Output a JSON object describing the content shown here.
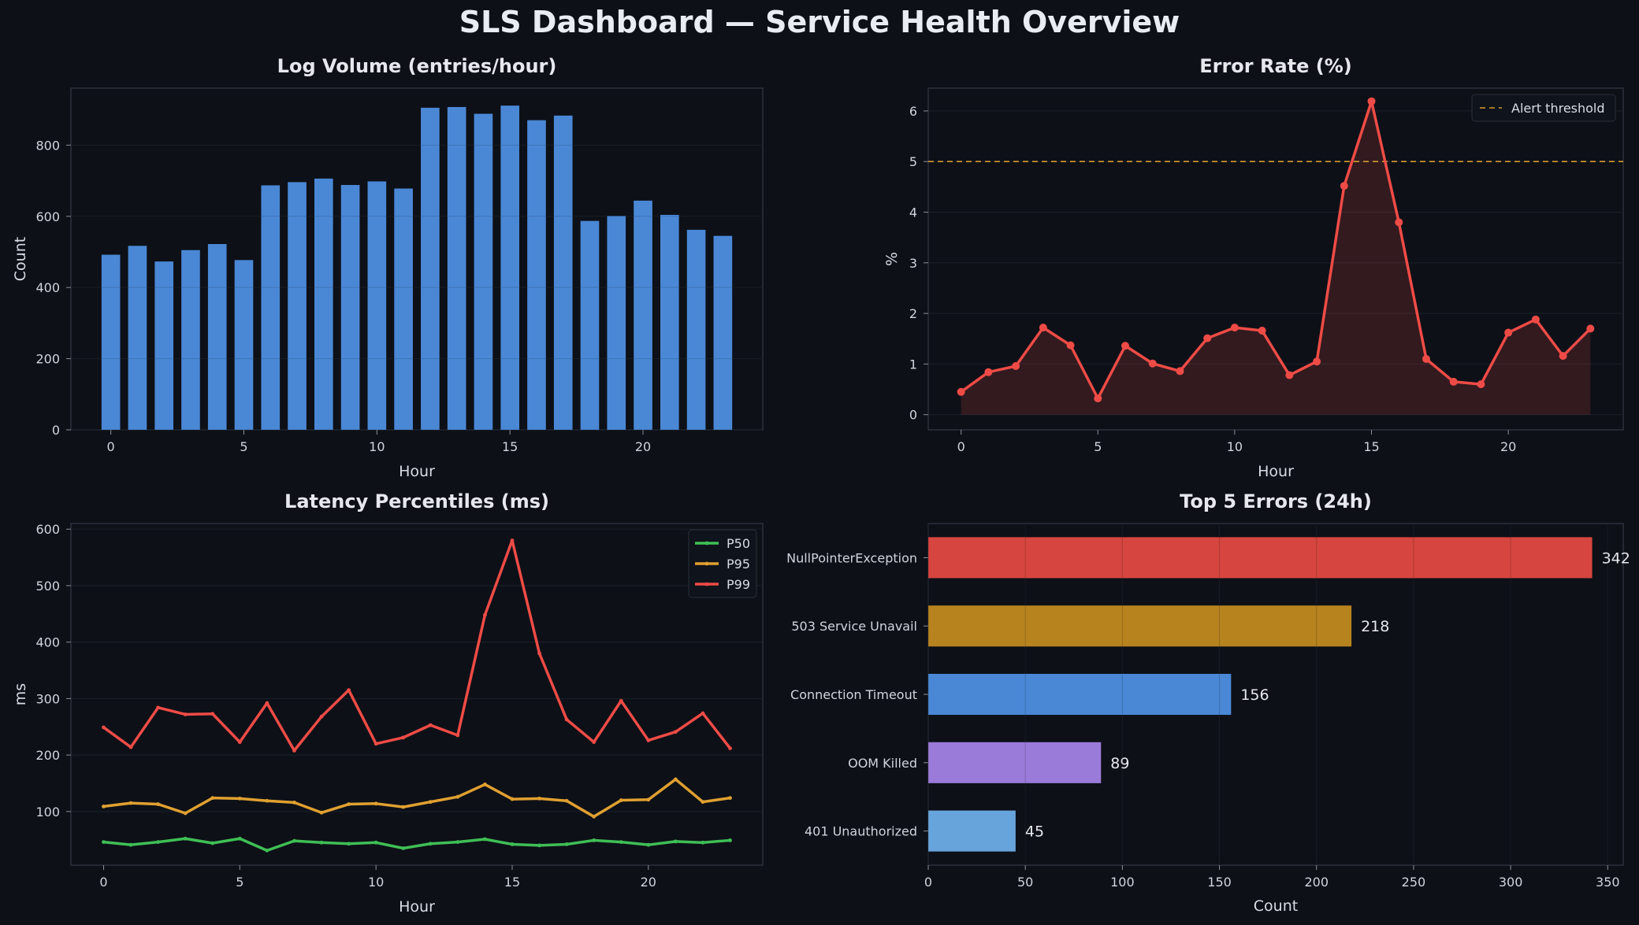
{
  "title": "SLS Dashboard — Service Health Overview",
  "colors": {
    "background": "#0d1017",
    "axis": "#2c313c",
    "grid": "#1c212b",
    "bar_blue": "#4a88d6",
    "error_red": "#ef4b46",
    "threshold": "#d69a2d",
    "p50": "#3fbf55",
    "p95": "#e0a030",
    "p99": "#ef4b46"
  },
  "chart_data": [
    {
      "id": "log-volume",
      "type": "bar",
      "title": "Log Volume (entries/hour)",
      "xlabel": "Hour",
      "ylabel": "Count",
      "x": [
        0,
        1,
        2,
        3,
        4,
        5,
        6,
        7,
        8,
        9,
        10,
        11,
        12,
        13,
        14,
        15,
        16,
        17,
        18,
        19,
        20,
        21,
        22,
        23
      ],
      "values": [
        492,
        517,
        473,
        505,
        522,
        477,
        687,
        696,
        706,
        688,
        698,
        678,
        905,
        907,
        888,
        911,
        870,
        883,
        587,
        601,
        644,
        604,
        562,
        545
      ],
      "xlim": [
        -1.5,
        24.5
      ],
      "ylim": [
        0,
        960
      ],
      "xticks": [
        0,
        5,
        10,
        15,
        20
      ],
      "yticks": [
        0,
        200,
        400,
        600,
        800
      ],
      "grid": true
    },
    {
      "id": "error-rate",
      "type": "area",
      "title": "Error Rate (%)",
      "xlabel": "Hour",
      "ylabel": "%",
      "x": [
        0,
        1,
        2,
        3,
        4,
        5,
        6,
        7,
        8,
        9,
        10,
        11,
        12,
        13,
        14,
        15,
        16,
        17,
        18,
        19,
        20,
        21,
        22,
        23
      ],
      "values": [
        0.45,
        0.84,
        0.96,
        1.72,
        1.37,
        0.32,
        1.36,
        1.01,
        0.86,
        1.51,
        1.72,
        1.66,
        0.78,
        1.05,
        4.52,
        6.19,
        3.8,
        1.1,
        0.65,
        0.6,
        1.62,
        1.88,
        1.16,
        1.7
      ],
      "threshold": {
        "value": 5,
        "label": "Alert threshold"
      },
      "legend": "top-right",
      "xlim": [
        -1.2,
        24.2
      ],
      "ylim": [
        -0.3,
        6.45
      ],
      "xticks": [
        0,
        5,
        10,
        15,
        20
      ],
      "yticks": [
        0,
        1,
        2,
        3,
        4,
        5,
        6
      ],
      "grid": true
    },
    {
      "id": "latency",
      "type": "line",
      "title": "Latency Percentiles (ms)",
      "xlabel": "Hour",
      "ylabel": "ms",
      "x": [
        0,
        1,
        2,
        3,
        4,
        5,
        6,
        7,
        8,
        9,
        10,
        11,
        12,
        13,
        14,
        15,
        16,
        17,
        18,
        19,
        20,
        21,
        22,
        23
      ],
      "series": [
        {
          "name": "P50",
          "values": [
            46,
            41,
            46,
            52,
            44,
            52,
            31,
            48,
            45,
            43,
            45,
            35,
            43,
            46,
            51,
            42,
            40,
            42,
            49,
            46,
            41,
            47,
            45,
            49
          ]
        },
        {
          "name": "P95",
          "values": [
            109,
            115,
            113,
            97,
            124,
            123,
            119,
            116,
            98,
            113,
            114,
            108,
            117,
            126,
            148,
            122,
            123,
            119,
            91,
            120,
            121,
            157,
            117,
            124
          ]
        },
        {
          "name": "P99",
          "values": [
            249,
            214,
            284,
            272,
            273,
            223,
            292,
            208,
            268,
            315,
            220,
            231,
            253,
            235,
            448,
            580,
            380,
            263,
            223,
            296,
            226,
            241,
            274,
            212
          ]
        }
      ],
      "legend": "top-right",
      "xlim": [
        -1.2,
        24.2
      ],
      "ylim": [
        5,
        610
      ],
      "xticks": [
        0,
        5,
        10,
        15,
        20
      ],
      "yticks": [
        100,
        200,
        300,
        400,
        500,
        600
      ],
      "grid": true
    },
    {
      "id": "top-errors",
      "type": "bar",
      "orientation": "horizontal",
      "title": "Top 5 Errors (24h)",
      "xlabel": "Count",
      "categories": [
        "NullPointerException",
        "503 Service Unavail",
        "Connection Timeout",
        "OOM Killed",
        "401 Unauthorized"
      ],
      "values": [
        342,
        218,
        156,
        89,
        45
      ],
      "bar_colors": [
        "#d6453f",
        "#b6831f",
        "#4a88d6",
        "#9b7bd9",
        "#67a4db"
      ],
      "xlim": [
        0,
        358
      ],
      "xticks": [
        0,
        50,
        100,
        150,
        200,
        250,
        300,
        350
      ],
      "grid": true
    }
  ]
}
